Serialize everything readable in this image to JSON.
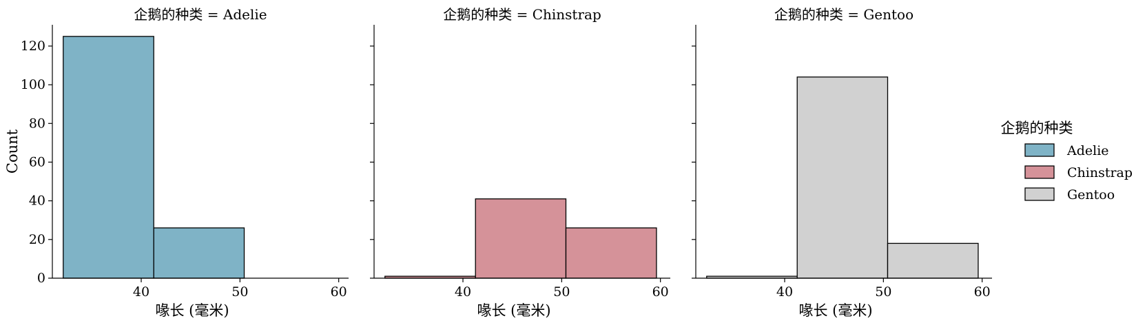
{
  "chart_data": {
    "type": "bar",
    "subtype": "faceted-histogram",
    "facet_variable_label": "企鹅的种类",
    "facet_titles": [
      "企鹅的种类 = Adelie",
      "企鹅的种类 = Chinstrap",
      "企鹅的种类 = Gentoo"
    ],
    "xlabel": "喙长 (毫米)",
    "ylabel": "Count",
    "xlim": [
      31,
      61
    ],
    "ylim": [
      0,
      131
    ],
    "x_ticks": [
      40,
      50,
      60
    ],
    "y_ticks": [
      0,
      20,
      40,
      60,
      80,
      100,
      120
    ],
    "bin_edges": [
      32.1,
      41.27,
      50.43,
      59.6
    ],
    "series": [
      {
        "name": "Adelie",
        "color": "#7fb3c6",
        "values": [
          125,
          26,
          0
        ]
      },
      {
        "name": "Chinstrap",
        "color": "#d59299",
        "values": [
          1,
          41,
          26
        ]
      },
      {
        "name": "Gentoo",
        "color": "#d1d1d1",
        "values": [
          1,
          104,
          18
        ]
      }
    ],
    "legend": {
      "title": "企鹅的种类",
      "position": "right",
      "entries": [
        "Adelie",
        "Chinstrap",
        "Gentoo"
      ]
    },
    "grid": false
  }
}
